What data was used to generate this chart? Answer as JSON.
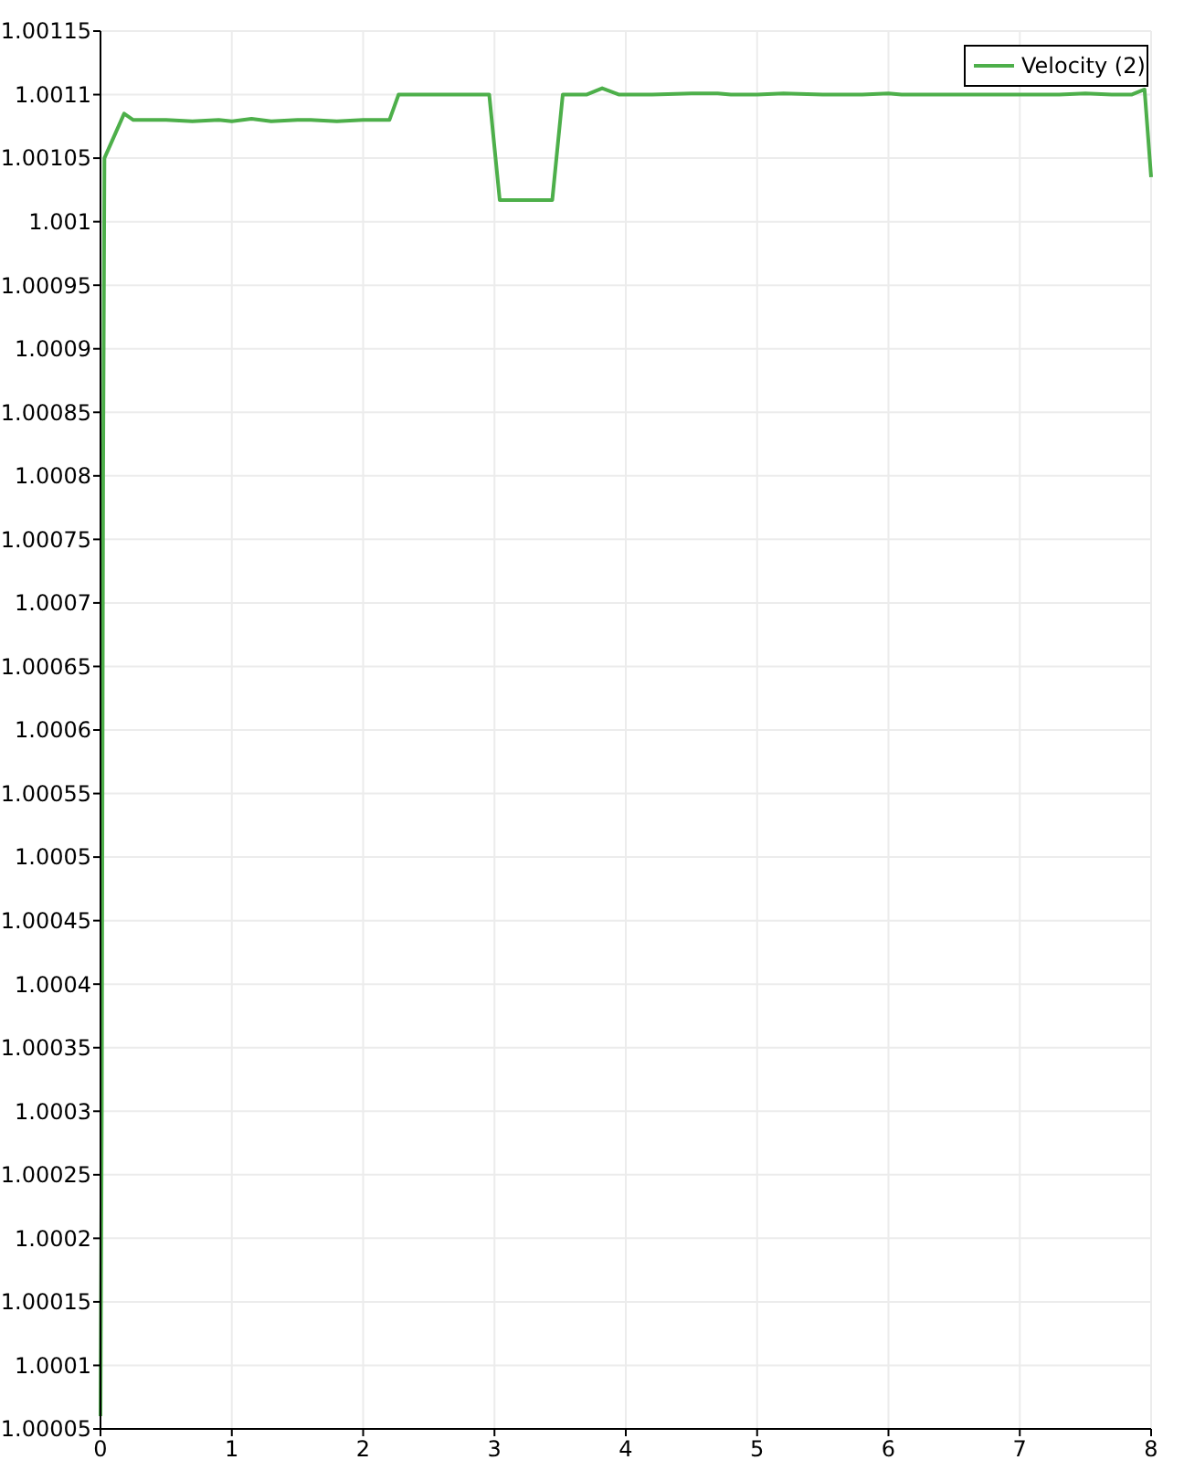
{
  "chart_data": {
    "type": "line",
    "x": [
      0,
      0.01,
      0.02,
      0.03,
      0.18,
      0.25,
      0.35,
      0.5,
      0.7,
      0.9,
      1.0,
      1.15,
      1.3,
      1.5,
      1.6,
      1.8,
      2.0,
      2.2,
      2.27,
      2.5,
      2.7,
      2.9,
      2.96,
      3.04,
      3.2,
      3.44,
      3.52,
      3.7,
      3.82,
      3.95,
      4.2,
      4.5,
      4.7,
      4.8,
      5.0,
      5.2,
      5.5,
      5.8,
      6.0,
      6.1,
      6.3,
      6.6,
      7.0,
      7.3,
      7.5,
      7.7,
      7.85,
      7.95,
      8.0
    ],
    "series": [
      {
        "name": "Velocity (2)",
        "color": "#4daf4a",
        "values": [
          1.00006,
          1.0003,
          1.0008,
          1.00105,
          1.001085,
          1.00108,
          1.00108,
          1.00108,
          1.001079,
          1.00108,
          1.001079,
          1.001081,
          1.001079,
          1.00108,
          1.00108,
          1.001079,
          1.00108,
          1.00108,
          1.0011,
          1.0011,
          1.0011,
          1.0011,
          1.0011,
          1.001017,
          1.001017,
          1.001017,
          1.0011,
          1.0011,
          1.001105,
          1.0011,
          1.0011,
          1.001101,
          1.001101,
          1.0011,
          1.0011,
          1.001101,
          1.0011,
          1.0011,
          1.001101,
          1.0011,
          1.0011,
          1.0011,
          1.0011,
          1.0011,
          1.001101,
          1.0011,
          1.0011,
          1.001104,
          1.001035
        ]
      }
    ],
    "xlim": [
      0,
      8
    ],
    "xticks": [
      0,
      1,
      2,
      3,
      4,
      5,
      6,
      7,
      8
    ],
    "ylim": [
      1.00005,
      1.00115
    ],
    "yticks": [
      1.00005,
      1.0001,
      1.00015,
      1.0002,
      1.00025,
      1.0003,
      1.00035,
      1.0004,
      1.00045,
      1.0005,
      1.00055,
      1.0006,
      1.00065,
      1.0007,
      1.00075,
      1.0008,
      1.00085,
      1.0009,
      1.00095,
      1.001,
      1.00105,
      1.0011,
      1.00115
    ],
    "grid": true,
    "legend": "top right",
    "marker": "none",
    "line_style": "solid"
  }
}
